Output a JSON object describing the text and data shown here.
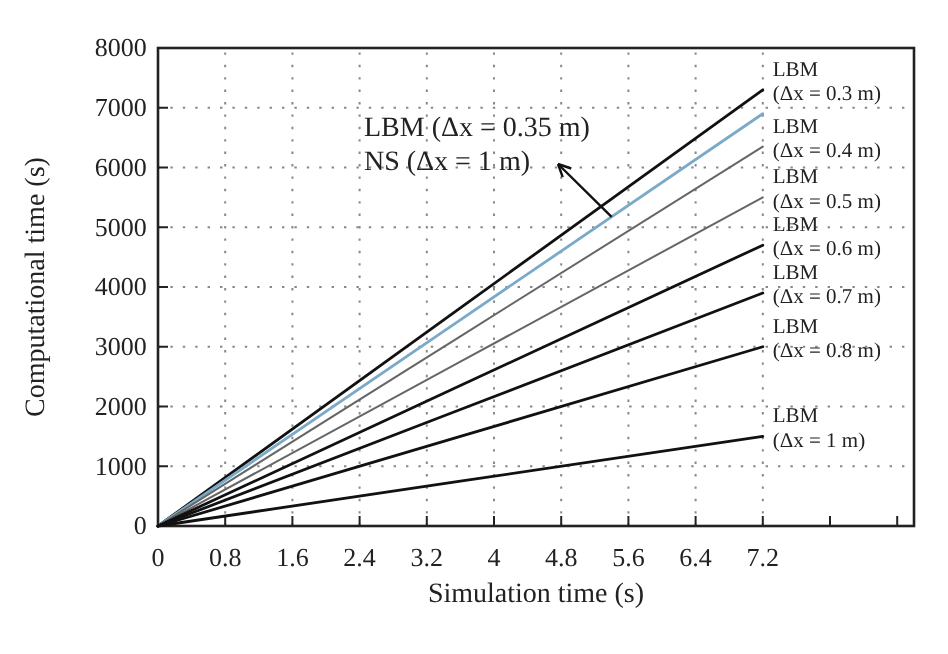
{
  "chart_data": {
    "type": "line",
    "xlabel": "Simulation time (s)",
    "ylabel": "Computational time (s)",
    "x": [
      0,
      3.6,
      7.2
    ],
    "series": [
      {
        "name": "LBM (Δx = 0.3 m)",
        "color": "#111111",
        "values": [
          0,
          3650,
          7300
        ]
      },
      {
        "color": "#7aaac8",
        "values": [
          0,
          3450,
          6900
        ]
      },
      {
        "name": "LBM (Δx = 0.4 m)",
        "color": "#666666",
        "values": [
          0,
          3175,
          6350
        ]
      },
      {
        "name": "LBM (Δx = 0.5 m)",
        "color": "#666666",
        "values": [
          0,
          2750,
          5500
        ]
      },
      {
        "name": "LBM (Δx = 0.6 m)",
        "color": "#111111",
        "values": [
          0,
          2350,
          4700
        ]
      },
      {
        "name": "LBM (Δx = 0.7 m)",
        "color": "#111111",
        "values": [
          0,
          1950,
          3900
        ]
      },
      {
        "name": "LBM (Δx = 0.8 m)",
        "color": "#111111",
        "values": [
          0,
          1500,
          3000
        ]
      },
      {
        "name": "LBM (Δx = 1 m)",
        "color": "#111111",
        "values": [
          0,
          750,
          1500
        ]
      }
    ],
    "xlim": [
      0,
      9
    ],
    "xticks": [
      0,
      0.8,
      1.6,
      2.4,
      3.2,
      4,
      4.8,
      5.6,
      6.4,
      7.2,
      {
        "value": 8,
        "label": null
      },
      {
        "value": 8.8,
        "label": null
      }
    ],
    "ylim": [
      0,
      8000
    ],
    "yticks": [
      0,
      1000,
      2000,
      3000,
      4000,
      5000,
      6000,
      7000,
      8000
    ],
    "grid": true,
    "legend": false,
    "marker": "none",
    "line_style": "solid",
    "annotations": [
      {
        "text": "LBM (Δx = 0.35 m)\nNS (Δx = 1 m)",
        "x": 5.4,
        "y": 5175
      }
    ]
  }
}
